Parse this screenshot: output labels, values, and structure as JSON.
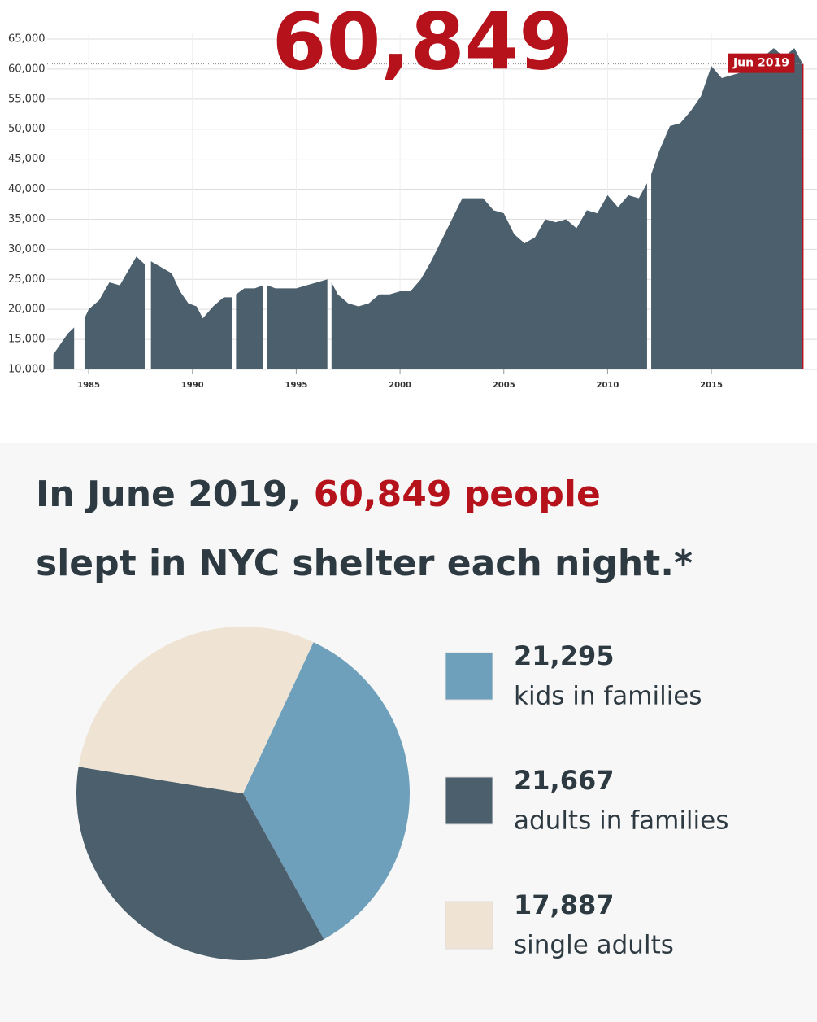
{
  "chart_data": [
    {
      "type": "area",
      "title": "60,849",
      "color": "#4b5f6c",
      "highlight_color": "#b5121b",
      "grid": true,
      "annotation": "Jun 2019",
      "xlim": [
        1983,
        2019.5
      ],
      "ylim": [
        10000,
        65000
      ],
      "xticks": [
        1985,
        1990,
        1995,
        2000,
        2005,
        2010,
        2015
      ],
      "yticks": [
        {
          "value": 10000,
          "label": "10,000"
        },
        {
          "value": 15000,
          "label": "15,000"
        },
        {
          "value": 20000,
          "label": "20,000"
        },
        {
          "value": 25000,
          "label": "25,000"
        },
        {
          "value": 30000,
          "label": "30,000"
        },
        {
          "value": 35000,
          "label": "35,000"
        },
        {
          "value": 40000,
          "label": "40,000"
        },
        {
          "value": 45000,
          "label": "45,000"
        },
        {
          "value": 50000,
          "label": "50,000"
        },
        {
          "value": 55000,
          "label": "55,000"
        },
        {
          "value": 60000,
          "label": "60,000"
        },
        {
          "value": 65000,
          "label": "65,000"
        }
      ],
      "x": [
        1983.3,
        1983.7,
        1984.0,
        1984.3,
        null,
        1984.8,
        1985.0,
        1985.5,
        1986.0,
        1986.5,
        1987.0,
        1987.3,
        1987.7,
        null,
        1988.0,
        1988.5,
        1989.0,
        1989.4,
        1989.8,
        1990.2,
        1990.5,
        1991.0,
        1991.5,
        1991.9,
        null,
        1992.1,
        1992.5,
        1993.0,
        1993.4,
        null,
        1993.6,
        1994.0,
        1994.5,
        1995.0,
        1995.5,
        1996.0,
        1996.5,
        null,
        1996.7,
        1997.0,
        1997.5,
        1998.0,
        1998.5,
        1999.0,
        1999.5,
        2000.0,
        2000.5,
        2001.0,
        2001.5,
        2002.0,
        2002.5,
        2003.0,
        2003.5,
        2004.0,
        2004.5,
        2005.0,
        2005.5,
        2006.0,
        2006.5,
        2007.0,
        2007.5,
        2008.0,
        2008.5,
        2009.0,
        2009.5,
        2010.0,
        2010.5,
        2011.0,
        2011.5,
        2011.9,
        null,
        2012.1,
        2012.5,
        2013.0,
        2013.5,
        2014.0,
        2014.5,
        2015.0,
        2015.5,
        2016.0,
        2016.5,
        2017.0,
        2017.5,
        2018.0,
        2018.5,
        2019.0,
        2019.4
      ],
      "values": [
        12500,
        14500,
        16000,
        17000,
        null,
        18500,
        20000,
        21500,
        24500,
        24000,
        27000,
        28800,
        27500,
        null,
        28000,
        27000,
        26000,
        23000,
        21000,
        20500,
        18500,
        20500,
        22000,
        22000,
        null,
        22500,
        23500,
        23500,
        24000,
        null,
        24000,
        23500,
        23500,
        23500,
        24000,
        24500,
        25000,
        null,
        24500,
        22500,
        21000,
        20500,
        21000,
        22500,
        22500,
        23000,
        23000,
        25000,
        28000,
        31500,
        35000,
        38500,
        38500,
        38500,
        36500,
        36000,
        32500,
        31000,
        32000,
        35000,
        34500,
        35000,
        33500,
        36500,
        36000,
        39000,
        37000,
        39000,
        38500,
        41000,
        null,
        42500,
        46500,
        50500,
        51000,
        53000,
        55500,
        60500,
        58500,
        59000,
        59500,
        62500,
        62000,
        63500,
        62000,
        63500,
        60849
      ]
    },
    {
      "type": "pie",
      "start_angle": 25,
      "labels": [
        "kids in families",
        "adults in families",
        "single adults"
      ],
      "values": [
        21295,
        21667,
        17887
      ],
      "value_labels": [
        "21,295",
        "21,667",
        "17,887"
      ],
      "colors": [
        "#6fa0bb",
        "#4b5f6c",
        "#efe4d3"
      ]
    }
  ],
  "headline": {
    "before": "In June 2019,",
    "highlight": "60,849 people",
    "after": "slept in NYC shelter each night.*"
  }
}
